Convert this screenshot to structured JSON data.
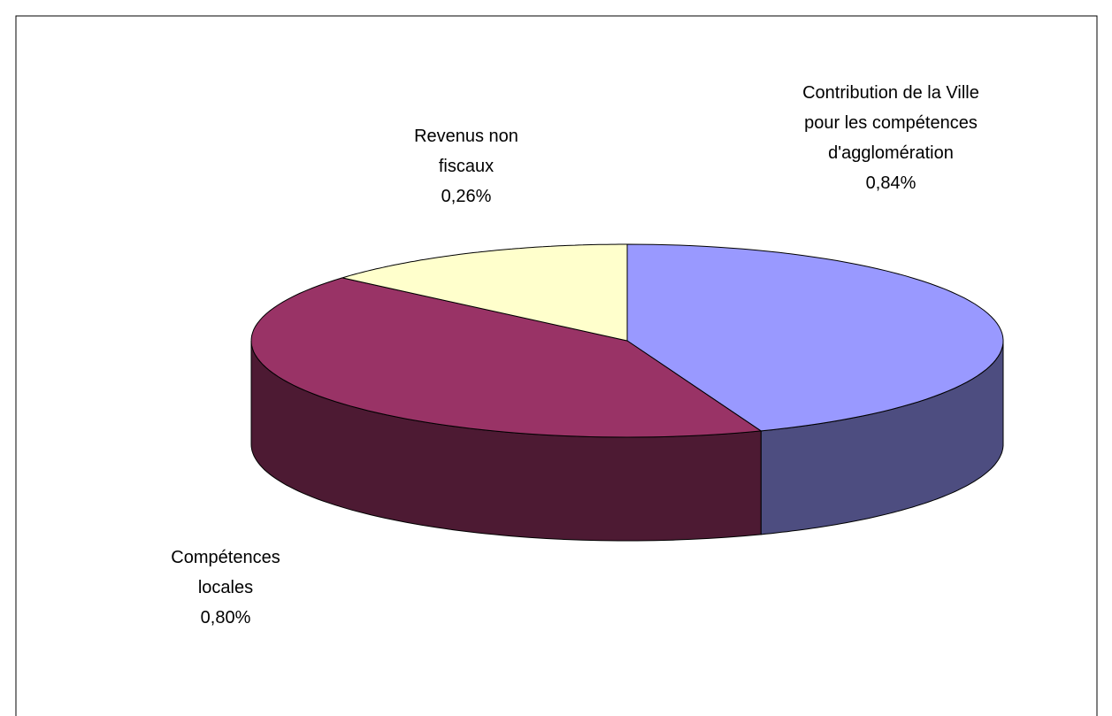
{
  "chart_data": {
    "type": "pie3d",
    "categories": [
      "Contribution de la Ville pour les compétences d'agglomération",
      "Compétences locales",
      "Revenus non fiscaux"
    ],
    "values": [
      0.84,
      0.8,
      0.26
    ],
    "value_labels": [
      "0,84%",
      "0,80%",
      "0,26%"
    ],
    "colors": [
      "#9999ff",
      "#993366",
      "#ffffcc"
    ],
    "side_colors": [
      "#4d4d80",
      "#4d1a33",
      "#80805e"
    ]
  }
}
